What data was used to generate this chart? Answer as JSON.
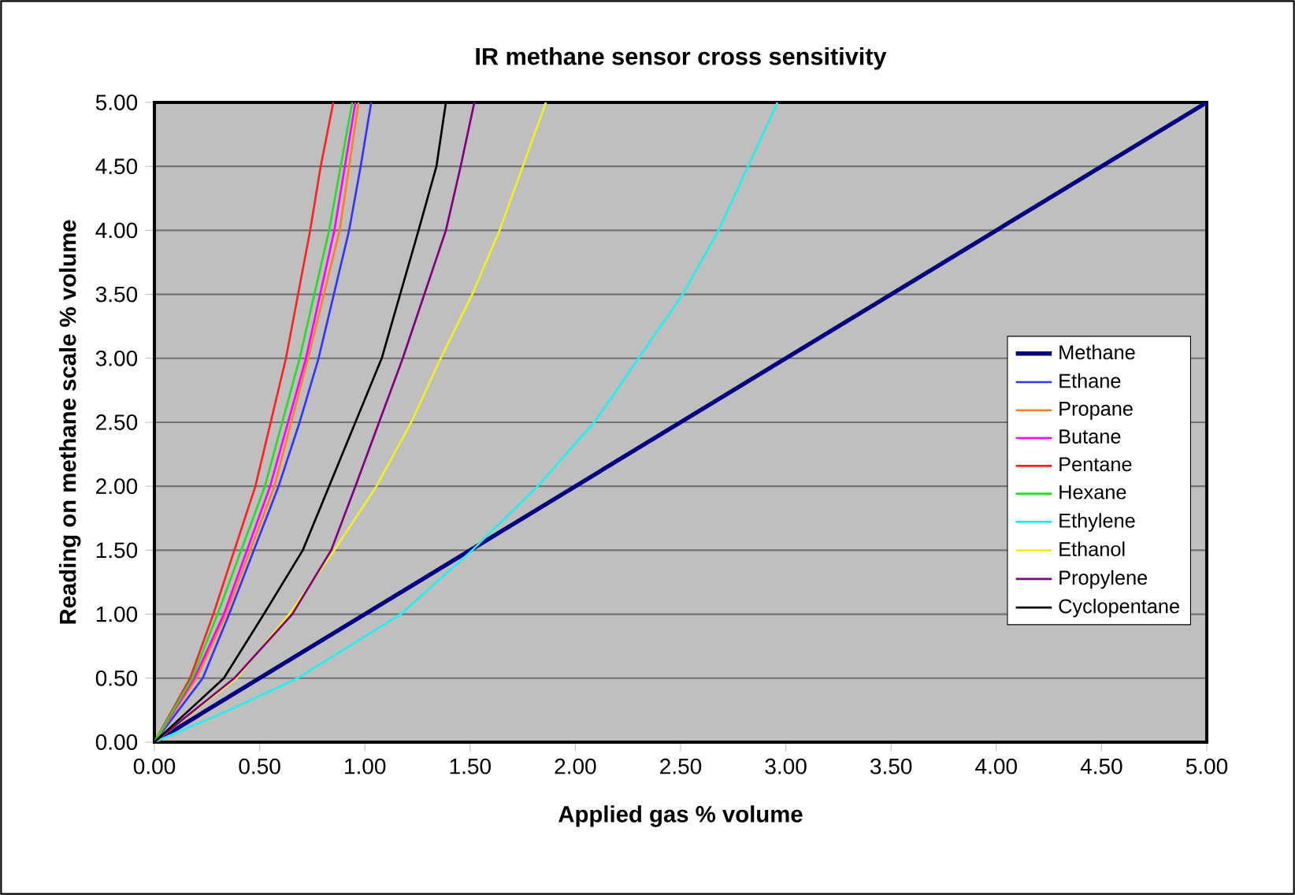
{
  "chart_data": {
    "type": "line",
    "title": "IR methane sensor cross sensitivity",
    "xlabel": "Applied gas % volume",
    "ylabel": "Reading on methane scale % volume",
    "xlim": [
      0,
      5
    ],
    "ylim": [
      0,
      5
    ],
    "xticks": [
      {
        "value": 0,
        "label": "0.00"
      },
      {
        "value": 0.5,
        "label": "0.50"
      },
      {
        "value": 1,
        "label": "1.00"
      },
      {
        "value": 1.5,
        "label": "1.50"
      },
      {
        "value": 2,
        "label": "2.00"
      },
      {
        "value": 2.5,
        "label": "2.50"
      },
      {
        "value": 3,
        "label": "3.00"
      },
      {
        "value": 3.5,
        "label": "3.50"
      },
      {
        "value": 4,
        "label": "4.00"
      },
      {
        "value": 4.5,
        "label": "4.50"
      },
      {
        "value": 5,
        "label": "5.00"
      }
    ],
    "yticks": [
      {
        "value": 0,
        "label": "0.00"
      },
      {
        "value": 0.5,
        "label": "0.50"
      },
      {
        "value": 1,
        "label": "1.00"
      },
      {
        "value": 1.5,
        "label": "1.50"
      },
      {
        "value": 2,
        "label": "2.00"
      },
      {
        "value": 2.5,
        "label": "2.50"
      },
      {
        "value": 3,
        "label": "3.00"
      },
      {
        "value": 3.5,
        "label": "3.50"
      },
      {
        "value": 4,
        "label": "4.00"
      },
      {
        "value": 4.5,
        "label": "4.50"
      },
      {
        "value": 5,
        "label": "5.00"
      }
    ],
    "grid": "y",
    "legend": "right",
    "series": [
      {
        "name": "Methane",
        "color": "#000080",
        "x": [
          0,
          5
        ],
        "values": [
          0,
          5
        ]
      },
      {
        "name": "Ethane",
        "color": "#3333ff",
        "x": [
          0,
          0.23,
          0.355,
          0.59,
          0.69,
          0.78,
          0.925,
          0.98,
          1.03
        ],
        "values": [
          0,
          0.5,
          1,
          2,
          2.5,
          3,
          4,
          4.5,
          5
        ]
      },
      {
        "name": "Propane",
        "color": "#ff7f27",
        "x": [
          0,
          0.2,
          0.34,
          0.57,
          0.73,
          0.88,
          0.97
        ],
        "values": [
          0,
          0.5,
          1,
          2,
          3,
          4,
          5
        ]
      },
      {
        "name": "Butane",
        "color": "#ff00ff",
        "x": [
          0,
          0.19,
          0.33,
          0.55,
          0.72,
          0.855,
          0.955
        ],
        "values": [
          0,
          0.5,
          1,
          2,
          3,
          4,
          5
        ]
      },
      {
        "name": "Pentane",
        "color": "#ff2020",
        "x": [
          0,
          0.17,
          0.28,
          0.48,
          0.625,
          0.74,
          0.79,
          0.85
        ],
        "values": [
          0,
          0.5,
          1,
          2,
          3,
          4,
          4.5,
          5
        ]
      },
      {
        "name": "Hexane",
        "color": "#20e020",
        "x": [
          0,
          0.18,
          0.3,
          0.525,
          0.69,
          0.83,
          0.94
        ],
        "values": [
          0,
          0.5,
          1,
          2,
          3,
          4,
          5
        ]
      },
      {
        "name": "Ethylene",
        "color": "#20f0f0",
        "x": [
          0,
          0.355,
          0.68,
          1.17,
          1.51,
          1.82,
          2.09,
          2.3,
          2.51,
          2.68,
          2.82,
          2.96
        ],
        "values": [
          0,
          0.25,
          0.5,
          1,
          1.5,
          2,
          2.5,
          3,
          3.5,
          4,
          4.5,
          5
        ]
      },
      {
        "name": "Ethanol",
        "color": "#f0f020",
        "x": [
          0,
          0.39,
          0.64,
          0.855,
          1.055,
          1.22,
          1.36,
          1.51,
          1.64,
          1.75,
          1.86
        ],
        "values": [
          0,
          0.5,
          1,
          1.5,
          2,
          2.5,
          3,
          3.5,
          4,
          4.5,
          5
        ]
      },
      {
        "name": "Propylene",
        "color": "#800080",
        "x": [
          0,
          0.38,
          0.655,
          0.84,
          0.955,
          1.18,
          1.385,
          1.455,
          1.52
        ],
        "values": [
          0,
          0.5,
          1,
          1.5,
          2,
          3,
          4,
          4.5,
          5
        ]
      },
      {
        "name": "Cyclopentane",
        "color": "#000000",
        "x": [
          0,
          0.33,
          0.52,
          0.705,
          0.83,
          0.955,
          1.08,
          1.255,
          1.34,
          1.385
        ],
        "values": [
          0,
          0.5,
          1,
          1.5,
          2,
          2.5,
          3,
          4,
          4.5,
          5
        ]
      }
    ]
  }
}
